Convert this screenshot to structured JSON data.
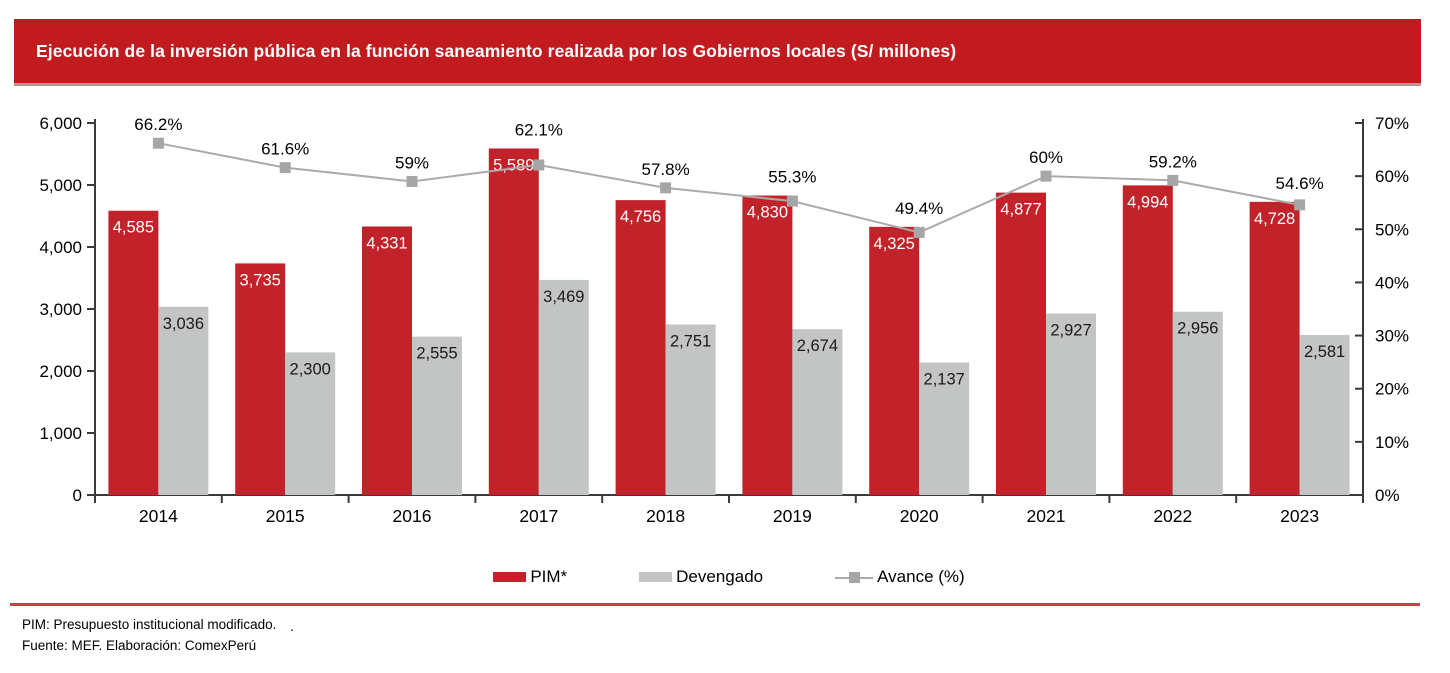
{
  "title": "Ejecución de la inversión pública en la función saneamiento realizada por los Gobiernos locales (S/ millones)",
  "colors": {
    "banner": "#C11B1F",
    "pim_bar": "#C2232B",
    "devengado_bar": "#C3C4C4",
    "avance_line": "#ABABAB",
    "avance_marker": "#A6A6A6",
    "axis": "#3A3A3A",
    "divider": "#D13D45",
    "bar_label_on_red": "#FFFFFF",
    "bar_label_on_gray": "#1A1A1A"
  },
  "chart_data": {
    "type": "bar",
    "subtype": "grouped bars with secondary-axis line",
    "categories": [
      "2014",
      "2015",
      "2016",
      "2017",
      "2018",
      "2019",
      "2020",
      "2021",
      "2022",
      "2023"
    ],
    "series": [
      {
        "name": "PIM*",
        "type": "bar",
        "axis": "left",
        "color": "#C2232B",
        "values": [
          4585,
          3735,
          4331,
          5589,
          4756,
          4830,
          4325,
          4877,
          4994,
          4728
        ],
        "labels": [
          "4,585",
          "3,735",
          "4,331",
          "5,589",
          "4,756",
          "4,830",
          "4,325",
          "4,877",
          "4,994",
          "4,728"
        ]
      },
      {
        "name": "Devengado",
        "type": "bar",
        "axis": "left",
        "color": "#C3C4C4",
        "values": [
          3036,
          2300,
          2555,
          3469,
          2751,
          2674,
          2137,
          2927,
          2956,
          2581
        ],
        "labels": [
          "3,036",
          "2,300",
          "2,555",
          "3,469",
          "2,751",
          "2,674",
          "2,137",
          "2,927",
          "2,956",
          "2,581"
        ]
      },
      {
        "name": "Avance (%)",
        "type": "line",
        "axis": "right",
        "color": "#A6A6A6",
        "values": [
          66.2,
          61.6,
          59,
          62.1,
          57.8,
          55.3,
          49.4,
          60,
          59.2,
          54.6
        ],
        "labels": [
          "66.2%",
          "61.6%",
          "59%",
          "62.1%",
          "57.8%",
          "55.3%",
          "49.4%",
          "60%",
          "59.2%",
          "54.6%"
        ]
      }
    ],
    "left_axis": {
      "min": 0,
      "max": 6000,
      "step": 1000,
      "tick_labels": [
        "0",
        "1,000",
        "2,000",
        "3,000",
        "4,000",
        "5,000",
        "6,000"
      ]
    },
    "right_axis": {
      "min": 0,
      "max": 70,
      "step": 10,
      "tick_labels": [
        "0%",
        "10%",
        "20%",
        "30%",
        "40%",
        "50%",
        "60%",
        "70%"
      ]
    },
    "grid": false,
    "legend_position": "bottom"
  },
  "footer": {
    "note": "PIM: Presupuesto institucional modificado.",
    "dot": ".",
    "source": "Fuente: MEF. Elaboración: ComexPerú"
  }
}
